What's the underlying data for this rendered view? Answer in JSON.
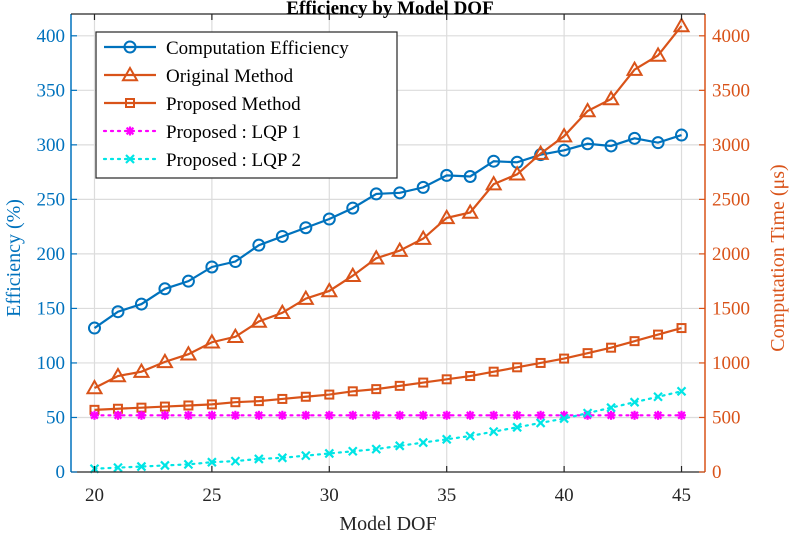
{
  "chart_data": {
    "type": "line",
    "title": "Efficiency by Model DOF",
    "xlabel": "Model DOF",
    "ylabel_left": "Efficiency (%)",
    "ylabel_right": "Computation Time (μs)",
    "xlim": [
      19,
      46
    ],
    "ylim_left": [
      0,
      420
    ],
    "ylim_right": [
      0,
      4200
    ],
    "xticks": [
      20,
      25,
      30,
      35,
      40,
      45
    ],
    "yticks_left": [
      0,
      50,
      100,
      150,
      200,
      250,
      300,
      350,
      400
    ],
    "yticks_right": [
      0,
      500,
      1000,
      1500,
      2000,
      2500,
      3000,
      3500,
      4000
    ],
    "grid": true,
    "legend_position": "top-left",
    "x": [
      20,
      21,
      22,
      23,
      24,
      25,
      26,
      27,
      28,
      29,
      30,
      31,
      32,
      33,
      34,
      35,
      36,
      37,
      38,
      39,
      40,
      41,
      42,
      43,
      44,
      45
    ],
    "series": [
      {
        "name": "Computation Efficiency",
        "axis": "left",
        "color": "#0072BD",
        "marker": "circle",
        "line": "solid",
        "values": [
          132,
          147,
          154,
          168,
          175,
          188,
          193,
          208,
          216,
          224,
          232,
          242,
          255,
          256,
          261,
          272,
          271,
          285,
          284,
          291,
          295,
          301,
          299,
          306,
          302,
          309
        ]
      },
      {
        "name": "Original Method",
        "axis": "right",
        "color": "#D95319",
        "marker": "triangle",
        "line": "solid",
        "values": [
          770,
          880,
          920,
          1010,
          1080,
          1190,
          1240,
          1380,
          1460,
          1590,
          1660,
          1800,
          1960,
          2030,
          2140,
          2330,
          2380,
          2640,
          2730,
          2920,
          3080,
          3310,
          3420,
          3690,
          3820,
          4090
        ]
      },
      {
        "name": "Proposed Method",
        "axis": "right",
        "color": "#D95319",
        "marker": "square",
        "line": "solid",
        "values": [
          570,
          580,
          590,
          600,
          610,
          620,
          640,
          650,
          670,
          690,
          710,
          740,
          760,
          790,
          820,
          850,
          880,
          920,
          960,
          1000,
          1040,
          1090,
          1140,
          1200,
          1260,
          1320
        ]
      },
      {
        "name": "Proposed : LQP 1",
        "axis": "left",
        "color": "#FF00FF",
        "marker": "star",
        "line": "dotted",
        "values": [
          52,
          52,
          52,
          52,
          52,
          52,
          52,
          52,
          52,
          52,
          52,
          52,
          52,
          52,
          52,
          52,
          52,
          52,
          52,
          52,
          52,
          52,
          52,
          52,
          52,
          52
        ]
      },
      {
        "name": "Proposed : LQP 2",
        "axis": "left",
        "color": "#00E5E5",
        "marker": "x",
        "line": "dotted",
        "values": [
          3,
          4,
          5,
          6,
          7,
          9,
          10,
          12,
          13,
          15,
          17,
          19,
          21,
          24,
          27,
          30,
          33,
          37,
          41,
          45,
          49,
          54,
          59,
          64,
          69,
          74
        ]
      }
    ]
  }
}
